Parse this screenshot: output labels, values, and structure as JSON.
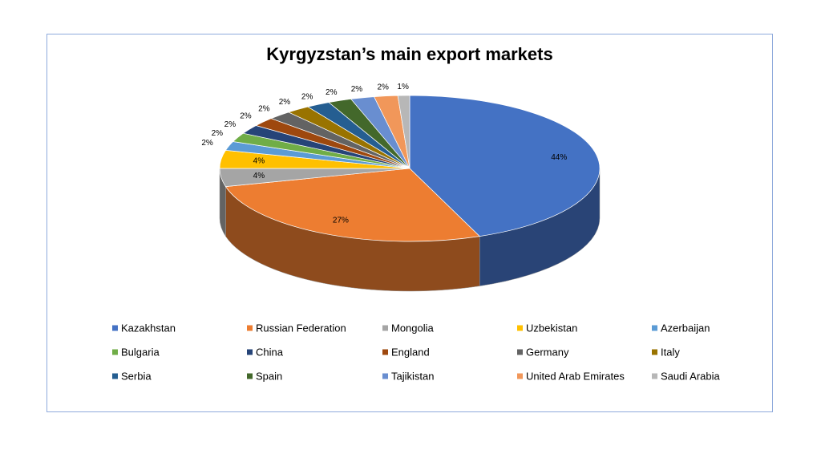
{
  "chart_data": {
    "type": "pie",
    "title": "Kyrgyzstan’s main export markets",
    "categories": [
      "Kazakhstan",
      "Russian Federation",
      "Mongolia",
      "Uzbekistan",
      "Azerbaijan",
      "Bulgaria",
      "China",
      "England",
      "Germany",
      "Italy",
      "Serbia",
      "Spain",
      "Tajikistan",
      "United Arab Emirates",
      "Saudi Arabia"
    ],
    "values": [
      44,
      27,
      4,
      4,
      2,
      2,
      2,
      2,
      2,
      2,
      2,
      2,
      2,
      2,
      1
    ],
    "value_labels": [
      "44%",
      "27%",
      "4%",
      "4%",
      "2%",
      "2%",
      "2%",
      "2%",
      "2%",
      "2%",
      "2%",
      "2%",
      "2%",
      "2%",
      "1%"
    ],
    "colors": [
      "#4472c4",
      "#ed7d31",
      "#a5a5a5",
      "#ffc000",
      "#5b9bd5",
      "#70ad47",
      "#264478",
      "#9e480e",
      "#636363",
      "#997300",
      "#255e91",
      "#43682b",
      "#698ed0",
      "#f1975a",
      "#b7b7b7"
    ],
    "legend": "bottom"
  }
}
